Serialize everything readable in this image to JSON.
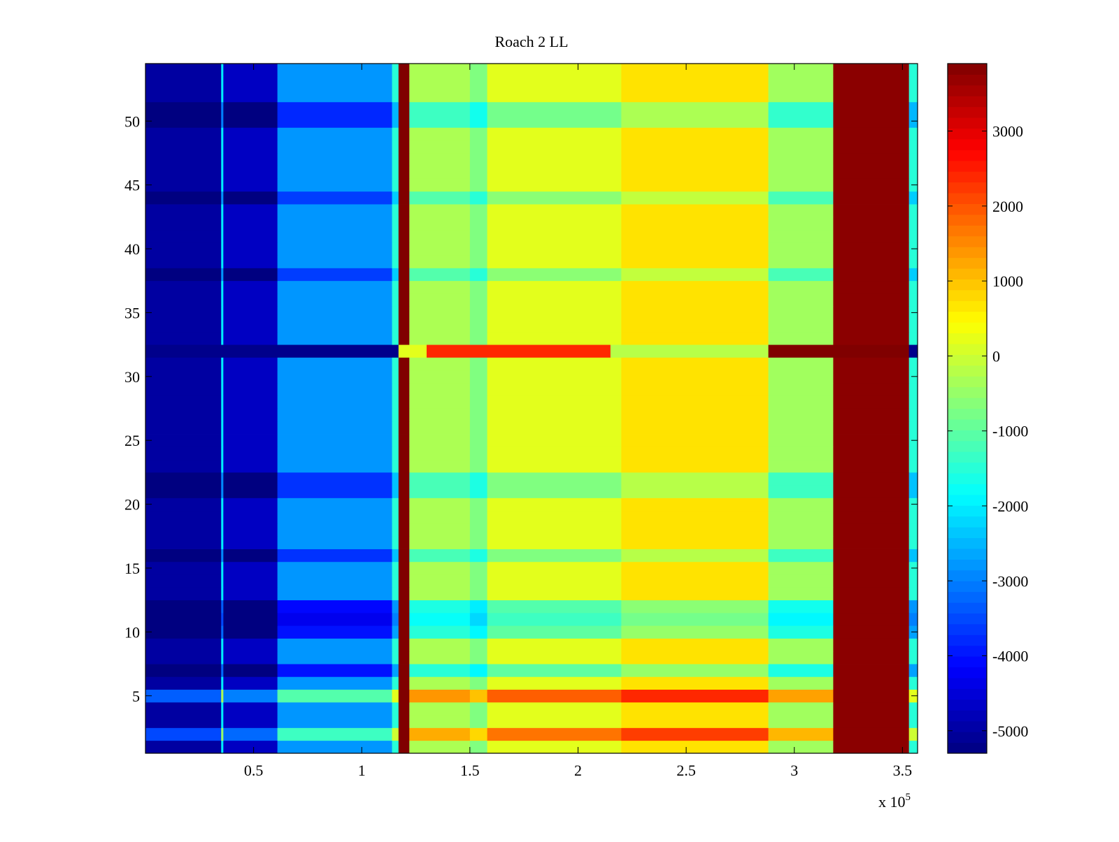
{
  "chart_data": {
    "type": "heatmap",
    "title": "Roach 2 LL",
    "xlabel": "",
    "ylabel": "",
    "x_multiplier_label": "x 10",
    "x_multiplier_exponent": "5",
    "xlim": [
      0,
      357000
    ],
    "ylim": [
      0.5,
      54.5
    ],
    "x_ticks": [
      0.5,
      1,
      1.5,
      2,
      2.5,
      3,
      3.5
    ],
    "x_tick_labels": [
      "0.5",
      "1",
      "1.5",
      "2",
      "2.5",
      "3",
      "3.5"
    ],
    "y_ticks": [
      5,
      10,
      15,
      20,
      25,
      30,
      35,
      40,
      45,
      50
    ],
    "y_tick_labels": [
      "5",
      "10",
      "15",
      "20",
      "25",
      "30",
      "35",
      "40",
      "45",
      "50"
    ],
    "colorbar": {
      "colormap": "jet",
      "clim": [
        -5300,
        3900
      ],
      "ticks": [
        -5000,
        -4000,
        -3000,
        -2000,
        -1000,
        0,
        1000,
        2000,
        3000
      ],
      "tick_labels": [
        "-5000",
        "-4000",
        "-3000",
        "-2000",
        "-1000",
        "0",
        "1000",
        "2000",
        "3000"
      ]
    },
    "rows": 54,
    "column_segments": [
      {
        "x_start": 0,
        "x_end": 35000,
        "value": -5000
      },
      {
        "x_start": 35000,
        "x_end": 36000,
        "value": -2000
      },
      {
        "x_start": 36000,
        "x_end": 61000,
        "value": -4700
      },
      {
        "x_start": 61000,
        "x_end": 114000,
        "value": -2800
      },
      {
        "x_start": 114000,
        "x_end": 117000,
        "value": -1500
      },
      {
        "x_start": 117000,
        "x_end": 122000,
        "value": 3900
      },
      {
        "x_start": 122000,
        "x_end": 150000,
        "value": -300
      },
      {
        "x_start": 150000,
        "x_end": 158000,
        "value": -700
      },
      {
        "x_start": 158000,
        "x_end": 220000,
        "value": 200
      },
      {
        "x_start": 220000,
        "x_end": 288000,
        "value": 700
      },
      {
        "x_start": 288000,
        "x_end": 318000,
        "value": -400
      },
      {
        "x_start": 318000,
        "x_end": 353000,
        "value": 3800
      },
      {
        "x_start": 353000,
        "x_end": 357000,
        "value": -1500
      }
    ],
    "row_offsets": [
      {
        "row": 2,
        "value": 1500
      },
      {
        "row": 5,
        "value": 1700
      },
      {
        "row": 7,
        "value": -1200
      },
      {
        "row": 10,
        "value": -1200
      },
      {
        "row": 11,
        "value": -1500
      },
      {
        "row": 12,
        "value": -1300
      },
      {
        "row": 16,
        "value": -900
      },
      {
        "row": 21,
        "value": -900
      },
      {
        "row": 22,
        "value": -900
      },
      {
        "row": 32,
        "value": -1500
      },
      {
        "row": 38,
        "value": -800
      },
      {
        "row": 44,
        "value": -800
      },
      {
        "row": 50,
        "value": -1000
      },
      {
        "row": 51,
        "value": -1000
      }
    ],
    "highlight_row": {
      "row": 32,
      "segments": [
        {
          "x_start": 0,
          "x_end": 117000,
          "value": -5200
        },
        {
          "x_start": 117000,
          "x_end": 130000,
          "value": 200
        },
        {
          "x_start": 130000,
          "x_end": 215000,
          "value": 2400
        },
        {
          "x_start": 215000,
          "x_end": 288000,
          "value": -200
        },
        {
          "x_start": 288000,
          "x_end": 318000,
          "value": 3900
        },
        {
          "x_start": 318000,
          "x_end": 353000,
          "value": 3900
        },
        {
          "x_start": 353000,
          "x_end": 357000,
          "value": -5200
        }
      ]
    }
  }
}
